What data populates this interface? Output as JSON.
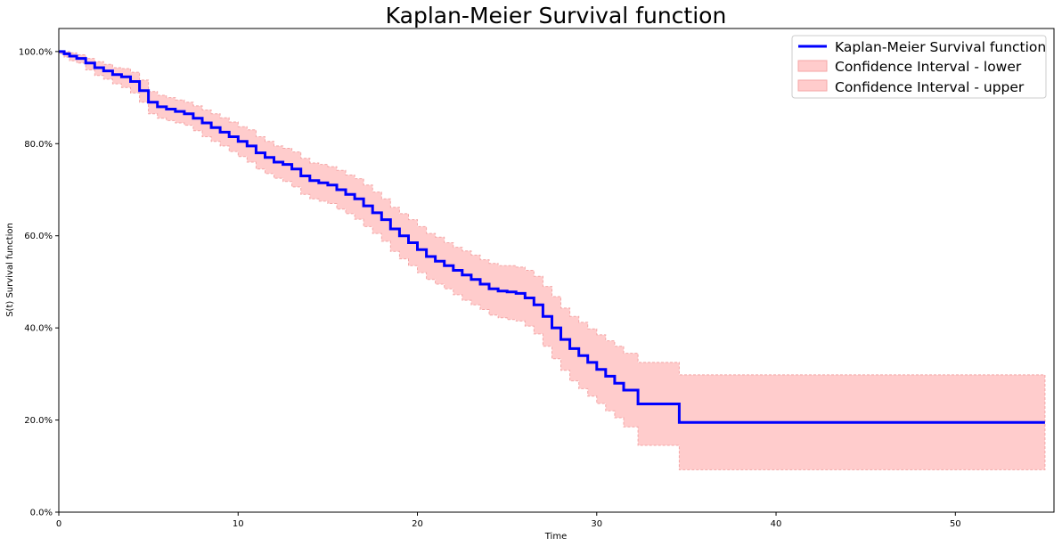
{
  "chart_data": {
    "type": "line",
    "title": "Kaplan-Meier Survival function",
    "xlabel": "Time",
    "ylabel": "S(t) Survival function",
    "xlim": [
      0,
      55.5
    ],
    "ylim": [
      0,
      1.05
    ],
    "x_ticks": [
      0,
      10,
      20,
      30,
      40,
      50
    ],
    "x_tick_labels": [
      "0",
      "10",
      "20",
      "30",
      "40",
      "50"
    ],
    "y_ticks": [
      0,
      0.2,
      0.4,
      0.6,
      0.8,
      1.0
    ],
    "y_tick_labels": [
      "0.0%",
      "20.0%",
      "40.0%",
      "60.0%",
      "80.0%",
      "100.0%"
    ],
    "grid": false,
    "legend_position": "top-right",
    "colors": {
      "survival": "#0000ff",
      "ci_fill": "#ffcccc",
      "ci_edge": "#f4a6a6"
    },
    "series": [
      {
        "name": "Kaplan-Meier Survival function",
        "kind": "step",
        "x": [
          0,
          0.3,
          0.6,
          1.0,
          1.5,
          2.0,
          2.5,
          3.0,
          3.5,
          4.0,
          4.5,
          5.0,
          5.5,
          6.0,
          6.5,
          7.0,
          7.5,
          8.0,
          8.5,
          9.0,
          9.5,
          10.0,
          10.5,
          11.0,
          11.5,
          12.0,
          12.5,
          13.0,
          13.5,
          14.0,
          14.5,
          15.0,
          15.5,
          16.0,
          16.5,
          17.0,
          17.5,
          18.0,
          18.5,
          19.0,
          19.5,
          20.0,
          20.5,
          21.0,
          21.5,
          22.0,
          22.5,
          23.0,
          23.5,
          24.0,
          24.5,
          25.0,
          25.5,
          26.0,
          26.5,
          27.0,
          27.5,
          28.0,
          28.5,
          29.0,
          29.5,
          30.0,
          30.5,
          31.0,
          31.5,
          32.2,
          32.3,
          34.5,
          34.6,
          55.0
        ],
        "values": [
          1.0,
          0.995,
          0.99,
          0.985,
          0.975,
          0.965,
          0.958,
          0.95,
          0.945,
          0.935,
          0.915,
          0.89,
          0.88,
          0.875,
          0.87,
          0.865,
          0.855,
          0.845,
          0.835,
          0.825,
          0.815,
          0.805,
          0.795,
          0.78,
          0.77,
          0.76,
          0.755,
          0.745,
          0.73,
          0.72,
          0.715,
          0.71,
          0.7,
          0.69,
          0.68,
          0.665,
          0.65,
          0.635,
          0.615,
          0.6,
          0.585,
          0.57,
          0.555,
          0.545,
          0.535,
          0.525,
          0.515,
          0.505,
          0.495,
          0.485,
          0.48,
          0.478,
          0.475,
          0.465,
          0.45,
          0.425,
          0.4,
          0.375,
          0.355,
          0.34,
          0.325,
          0.31,
          0.295,
          0.28,
          0.265,
          0.265,
          0.235,
          0.235,
          0.195,
          0.195
        ]
      },
      {
        "name": "Confidence Interval - lower",
        "kind": "band-lower",
        "x": [
          0,
          0.3,
          0.6,
          1.0,
          1.5,
          2.0,
          2.5,
          3.0,
          3.5,
          4.0,
          4.5,
          5.0,
          5.5,
          6.0,
          6.5,
          7.0,
          7.5,
          8.0,
          8.5,
          9.0,
          9.5,
          10.0,
          10.5,
          11.0,
          11.5,
          12.0,
          12.5,
          13.0,
          13.5,
          14.0,
          14.5,
          15.0,
          15.5,
          16.0,
          16.5,
          17.0,
          17.5,
          18.0,
          18.5,
          19.0,
          19.5,
          20.0,
          20.5,
          21.0,
          21.5,
          22.0,
          22.5,
          23.0,
          23.5,
          24.0,
          24.5,
          25.0,
          25.5,
          26.0,
          26.5,
          27.0,
          27.5,
          28.0,
          28.5,
          29.0,
          29.5,
          30.0,
          30.5,
          31.0,
          31.5,
          32.2,
          32.3,
          34.5,
          34.6,
          55.0
        ],
        "values": [
          0.995,
          0.988,
          0.98,
          0.975,
          0.96,
          0.948,
          0.94,
          0.93,
          0.922,
          0.91,
          0.89,
          0.865,
          0.855,
          0.85,
          0.845,
          0.84,
          0.828,
          0.815,
          0.805,
          0.795,
          0.783,
          0.772,
          0.76,
          0.745,
          0.735,
          0.725,
          0.718,
          0.706,
          0.69,
          0.68,
          0.675,
          0.67,
          0.658,
          0.648,
          0.636,
          0.62,
          0.605,
          0.588,
          0.566,
          0.55,
          0.535,
          0.52,
          0.505,
          0.495,
          0.485,
          0.472,
          0.46,
          0.45,
          0.44,
          0.428,
          0.422,
          0.418,
          0.415,
          0.404,
          0.387,
          0.36,
          0.333,
          0.308,
          0.285,
          0.268,
          0.252,
          0.236,
          0.22,
          0.205,
          0.185,
          0.185,
          0.145,
          0.145,
          0.092,
          0.092
        ]
      },
      {
        "name": "Confidence Interval - upper",
        "kind": "band-upper",
        "x": [
          0,
          0.3,
          0.6,
          1.0,
          1.5,
          2.0,
          2.5,
          3.0,
          3.5,
          4.0,
          4.5,
          5.0,
          5.5,
          6.0,
          6.5,
          7.0,
          7.5,
          8.0,
          8.5,
          9.0,
          9.5,
          10.0,
          10.5,
          11.0,
          11.5,
          12.0,
          12.5,
          13.0,
          13.5,
          14.0,
          14.5,
          15.0,
          15.5,
          16.0,
          16.5,
          17.0,
          17.5,
          18.0,
          18.5,
          19.0,
          19.5,
          20.0,
          20.5,
          21.0,
          21.5,
          22.0,
          22.5,
          23.0,
          23.5,
          24.0,
          24.5,
          25.0,
          25.5,
          26.0,
          26.5,
          27.0,
          27.5,
          28.0,
          28.5,
          29.0,
          29.5,
          30.0,
          30.5,
          31.0,
          31.5,
          32.2,
          32.3,
          34.5,
          34.6,
          55.0
        ],
        "values": [
          1.0,
          1.0,
          0.997,
          0.993,
          0.985,
          0.978,
          0.972,
          0.965,
          0.963,
          0.955,
          0.938,
          0.913,
          0.905,
          0.9,
          0.895,
          0.89,
          0.882,
          0.873,
          0.865,
          0.856,
          0.847,
          0.837,
          0.83,
          0.815,
          0.805,
          0.795,
          0.79,
          0.782,
          0.768,
          0.758,
          0.755,
          0.75,
          0.742,
          0.732,
          0.724,
          0.71,
          0.695,
          0.68,
          0.662,
          0.648,
          0.635,
          0.62,
          0.605,
          0.597,
          0.585,
          0.575,
          0.567,
          0.558,
          0.548,
          0.54,
          0.535,
          0.535,
          0.532,
          0.525,
          0.512,
          0.49,
          0.468,
          0.443,
          0.425,
          0.412,
          0.398,
          0.385,
          0.372,
          0.36,
          0.345,
          0.345,
          0.325,
          0.325,
          0.298,
          0.298
        ]
      }
    ]
  }
}
